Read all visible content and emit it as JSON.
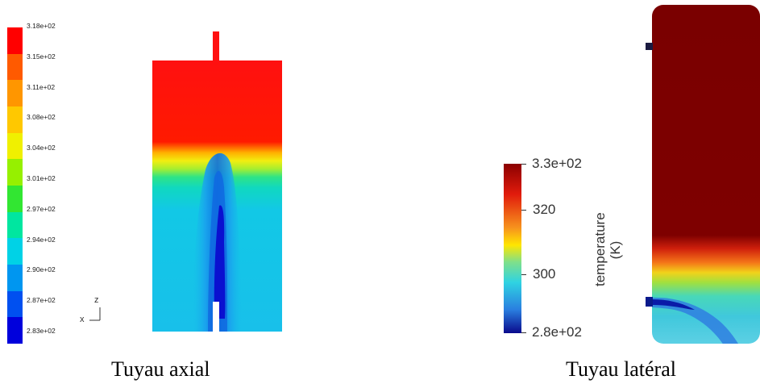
{
  "left_panel": {
    "colorbar": {
      "labels": [
        "3.18e+02",
        "3.15e+02",
        "3.11e+02",
        "3.08e+02",
        "3.04e+02",
        "3.01e+02",
        "2.97e+02",
        "2.94e+02",
        "2.90e+02",
        "2.87e+02",
        "2.83e+02"
      ],
      "colors": [
        "#ff0000",
        "#ff5a00",
        "#ff9600",
        "#ffc800",
        "#f0f000",
        "#96f000",
        "#32e632",
        "#00e6a0",
        "#00d2e6",
        "#0096f0",
        "#0050f0",
        "#0000dc"
      ]
    },
    "axis_triad": {
      "z": "z",
      "x": "x"
    },
    "caption": "Tuyau axial"
  },
  "right_panel": {
    "colorbar": {
      "title": "temperature\n(K)",
      "ticks": [
        "3.3e+02",
        "320",
        "300",
        "2.8e+02"
      ]
    },
    "caption": "Tuyau latéral"
  }
}
